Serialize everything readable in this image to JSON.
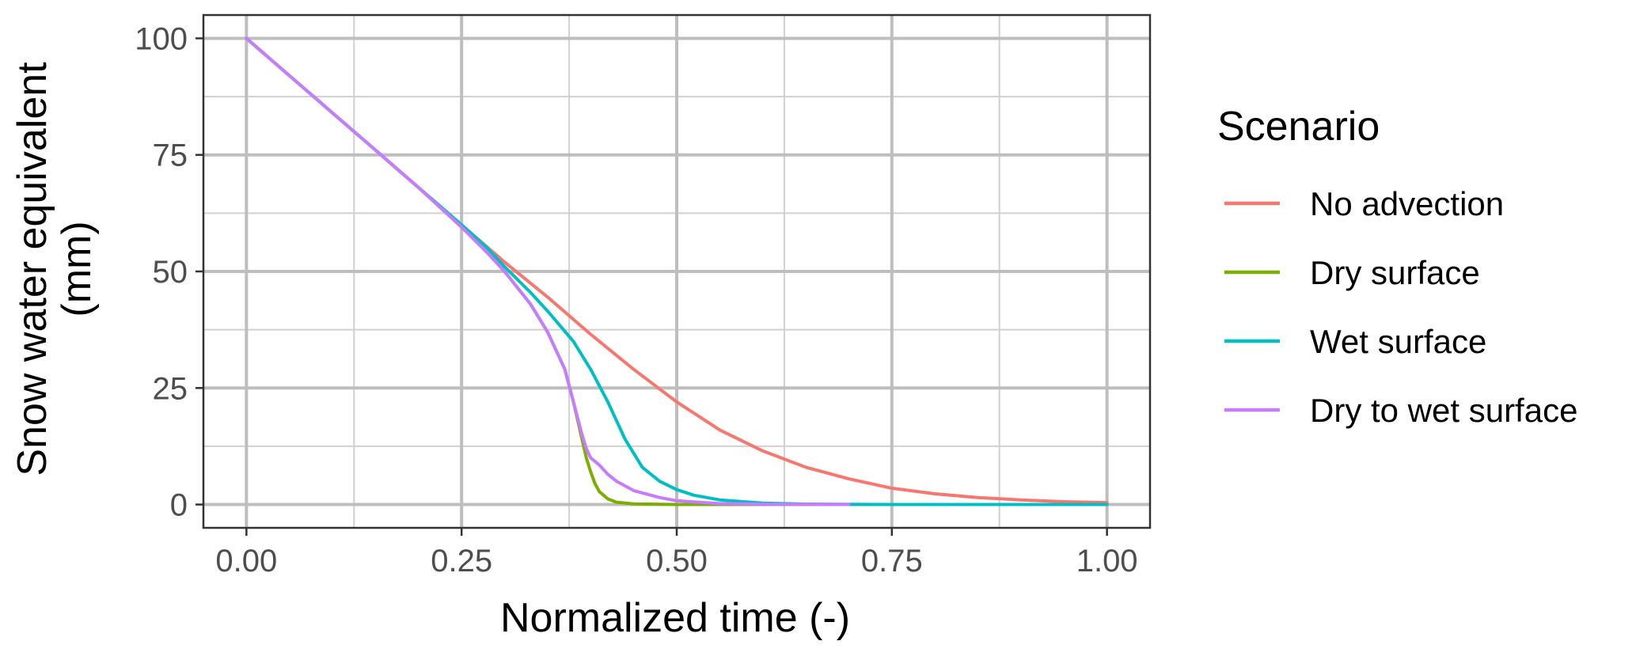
{
  "chart_data": {
    "type": "line",
    "xlabel": "Normalized time (-)",
    "ylabel_lines": [
      "Snow water equivalent",
      "(mm)"
    ],
    "xlim": [
      -0.05,
      1.05
    ],
    "ylim": [
      -5,
      105
    ],
    "x_ticks": [
      0.0,
      0.25,
      0.5,
      0.75,
      1.0
    ],
    "x_tick_labels": [
      "0.00",
      "0.25",
      "0.50",
      "0.75",
      "1.00"
    ],
    "y_ticks": [
      0,
      25,
      50,
      75,
      100
    ],
    "y_tick_labels": [
      "0",
      "25",
      "50",
      "75",
      "100"
    ],
    "grid": true,
    "legend": {
      "title": "Scenario",
      "position": "right"
    },
    "series": [
      {
        "name": "No advection",
        "color": "#F8766D",
        "x": [
          0,
          0.05,
          0.1,
          0.15,
          0.2,
          0.25,
          0.3,
          0.35,
          0.4,
          0.45,
          0.5,
          0.55,
          0.6,
          0.65,
          0.7,
          0.75,
          0.8,
          0.85,
          0.9,
          0.95,
          1.0
        ],
        "y": [
          100,
          92,
          84,
          76,
          68,
          60,
          52,
          44.5,
          36.5,
          29,
          22,
          16,
          11.5,
          8,
          5.5,
          3.5,
          2.3,
          1.5,
          1,
          0.6,
          0.4
        ]
      },
      {
        "name": "Dry surface",
        "color": "#7CAE00",
        "x": [
          0,
          0.05,
          0.1,
          0.15,
          0.2,
          0.25,
          0.28,
          0.3,
          0.33,
          0.35,
          0.37,
          0.38,
          0.39,
          0.395,
          0.4,
          0.405,
          0.41,
          0.42,
          0.43,
          0.45,
          0.5,
          0.6,
          0.75
        ],
        "y": [
          100,
          92,
          84,
          76,
          68,
          59.5,
          54,
          50,
          43,
          37,
          29,
          22,
          14,
          10,
          7,
          4.5,
          2.8,
          1.2,
          0.5,
          0.15,
          0,
          0,
          0
        ]
      },
      {
        "name": "Wet surface",
        "color": "#00BFC4",
        "x": [
          0,
          0.05,
          0.1,
          0.15,
          0.2,
          0.25,
          0.28,
          0.3,
          0.33,
          0.35,
          0.38,
          0.4,
          0.42,
          0.44,
          0.45,
          0.46,
          0.47,
          0.48,
          0.5,
          0.52,
          0.55,
          0.6,
          0.65,
          0.75,
          1.0
        ],
        "y": [
          100,
          92,
          84,
          76,
          68,
          60,
          55,
          51,
          45.5,
          41.5,
          35,
          29,
          22,
          14,
          11,
          8,
          6.5,
          5,
          3.2,
          2,
          1,
          0.3,
          0.1,
          0,
          0
        ]
      },
      {
        "name": "Dry to wet surface",
        "color": "#C77CFF",
        "x": [
          0,
          0.05,
          0.1,
          0.15,
          0.2,
          0.25,
          0.28,
          0.3,
          0.33,
          0.35,
          0.37,
          0.38,
          0.39,
          0.395,
          0.4,
          0.41,
          0.42,
          0.43,
          0.45,
          0.48,
          0.5,
          0.55,
          0.6,
          0.7
        ],
        "y": [
          100,
          92,
          84,
          76,
          68,
          59.5,
          54,
          50,
          43,
          37,
          29,
          22,
          15,
          12,
          10,
          8.5,
          6.5,
          5,
          3,
          1.5,
          0.8,
          0.2,
          0.05,
          0
        ]
      }
    ]
  }
}
